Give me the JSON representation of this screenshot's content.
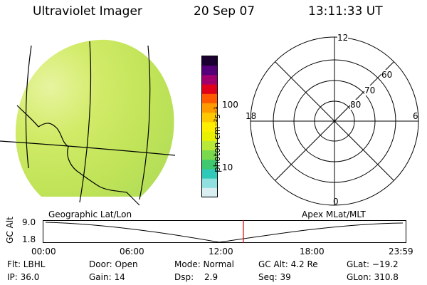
{
  "header": {
    "instrument": "Ultraviolet Imager",
    "date": "20 Sep 07",
    "time": "13:11:33 UT"
  },
  "image_panel": {
    "label": "Geographic Lat/Lon",
    "dominant_color": "#c8e44a"
  },
  "colorbar": {
    "unit_label": "photon cm⁻²s⁻¹",
    "tick_labels": [
      "100",
      "10"
    ],
    "scale": "log",
    "colors": [
      "#1a0030",
      "#55007a",
      "#a0006e",
      "#e0001a",
      "#ff5a00",
      "#ff9a00",
      "#ffc800",
      "#ffee00",
      "#e8f000",
      "#b8e838",
      "#7ad84c",
      "#40c870",
      "#30c8b8",
      "#90e0e0",
      "#d8eef0"
    ]
  },
  "polar_plot": {
    "label": "Apex MLat/MLT",
    "mlt_labels": {
      "top": "12",
      "left": "18",
      "right": "6",
      "bottom": "0"
    },
    "lat_labels": [
      "60",
      "70",
      "80"
    ]
  },
  "timeline": {
    "axis_label": "GC Alt",
    "y_ticks": [
      "9.0",
      "1.8"
    ],
    "x_ticks": [
      "00:00",
      "06:00",
      "12:00",
      "18:00",
      "23:59"
    ],
    "current_time_marker_color": "#e00000"
  },
  "info": {
    "flt": "Flt: LBHL",
    "ip": "IP: 36.0",
    "door": "Door: Open",
    "gain": "Gain: 14",
    "mode": "Mode: Normal",
    "dsp": "Dsp:",
    "dsp_value": "2.9",
    "gc_alt": "GC Alt: 4.2 Re",
    "seq": "Seq: 39",
    "glat": "GLat: −19.2",
    "glon": "GLon: 310.8"
  }
}
